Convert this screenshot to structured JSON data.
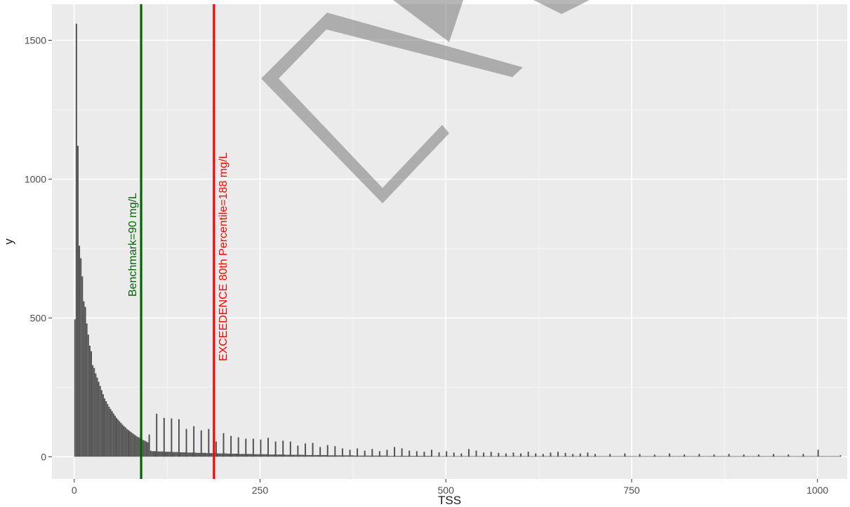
{
  "chart_data": {
    "type": "bar",
    "xlabel": "TSS",
    "ylabel": "y",
    "xlim": [
      -30,
      1040
    ],
    "ylim": [
      -80,
      1630
    ],
    "x_ticks": [
      0,
      250,
      500,
      750,
      1000
    ],
    "y_ticks": [
      0,
      500,
      1000,
      1500
    ],
    "grid": true,
    "colors": {
      "panel": "#ebebeb",
      "grid_major": "#ffffff",
      "bar": "#4d4d4d",
      "benchmark": "#006400",
      "exceedence": "#ff0000"
    },
    "bin_width": 2,
    "dense_bins": [
      [
        0,
        495
      ],
      [
        2,
        1560
      ],
      [
        4,
        1120
      ],
      [
        6,
        760
      ],
      [
        8,
        715
      ],
      [
        10,
        650
      ],
      [
        12,
        560
      ],
      [
        14,
        540
      ],
      [
        16,
        480
      ],
      [
        18,
        440
      ],
      [
        20,
        400
      ],
      [
        22,
        380
      ],
      [
        24,
        330
      ],
      [
        26,
        320
      ],
      [
        28,
        300
      ],
      [
        30,
        285
      ],
      [
        32,
        270
      ],
      [
        34,
        255
      ],
      [
        36,
        240
      ],
      [
        38,
        225
      ],
      [
        40,
        210
      ],
      [
        42,
        200
      ],
      [
        44,
        190
      ],
      [
        46,
        180
      ],
      [
        48,
        172
      ],
      [
        50,
        164
      ],
      [
        52,
        156
      ],
      [
        54,
        148
      ],
      [
        56,
        140
      ],
      [
        58,
        134
      ],
      [
        60,
        128
      ],
      [
        62,
        122
      ],
      [
        64,
        116
      ],
      [
        66,
        110
      ],
      [
        68,
        106
      ],
      [
        70,
        100
      ],
      [
        72,
        96
      ],
      [
        74,
        92
      ],
      [
        76,
        88
      ],
      [
        78,
        84
      ],
      [
        80,
        80
      ],
      [
        82,
        76
      ],
      [
        84,
        72
      ],
      [
        86,
        70
      ],
      [
        88,
        66
      ],
      [
        90,
        64
      ],
      [
        92,
        60
      ],
      [
        94,
        58
      ],
      [
        96,
        55
      ],
      [
        98,
        52
      ],
      [
        100,
        80
      ],
      [
        102,
        22
      ],
      [
        104,
        20
      ]
    ],
    "spike_bins": [
      [
        110,
        155
      ],
      [
        120,
        140
      ],
      [
        130,
        138
      ],
      [
        140,
        135
      ],
      [
        150,
        100
      ],
      [
        160,
        110
      ],
      [
        170,
        95
      ],
      [
        180,
        100
      ],
      [
        190,
        55
      ],
      [
        200,
        85
      ],
      [
        210,
        75
      ],
      [
        220,
        70
      ],
      [
        230,
        65
      ],
      [
        240,
        65
      ],
      [
        250,
        62
      ],
      [
        260,
        68
      ],
      [
        270,
        55
      ],
      [
        280,
        58
      ],
      [
        290,
        55
      ],
      [
        300,
        40
      ],
      [
        310,
        48
      ],
      [
        320,
        50
      ],
      [
        330,
        35
      ],
      [
        340,
        42
      ],
      [
        350,
        38
      ],
      [
        360,
        30
      ],
      [
        370,
        25
      ],
      [
        380,
        30
      ],
      [
        390,
        22
      ],
      [
        400,
        28
      ],
      [
        410,
        20
      ],
      [
        420,
        25
      ],
      [
        430,
        35
      ],
      [
        440,
        30
      ],
      [
        450,
        22
      ],
      [
        460,
        20
      ],
      [
        470,
        18
      ],
      [
        480,
        25
      ],
      [
        490,
        16
      ],
      [
        500,
        20
      ],
      [
        510,
        15
      ],
      [
        520,
        12
      ],
      [
        530,
        28
      ],
      [
        540,
        22
      ],
      [
        550,
        15
      ],
      [
        560,
        18
      ],
      [
        570,
        14
      ],
      [
        580,
        12
      ],
      [
        590,
        15
      ],
      [
        600,
        12
      ],
      [
        610,
        18
      ],
      [
        620,
        12
      ],
      [
        630,
        10
      ],
      [
        640,
        15
      ],
      [
        650,
        18
      ],
      [
        660,
        14
      ],
      [
        670,
        10
      ],
      [
        680,
        12
      ],
      [
        690,
        15
      ],
      [
        700,
        10
      ],
      [
        720,
        10
      ],
      [
        740,
        12
      ],
      [
        760,
        10
      ],
      [
        780,
        8
      ],
      [
        800,
        12
      ],
      [
        820,
        8
      ],
      [
        840,
        10
      ],
      [
        860,
        8
      ],
      [
        880,
        10
      ],
      [
        900,
        8
      ],
      [
        920,
        8
      ],
      [
        940,
        10
      ],
      [
        960,
        8
      ],
      [
        980,
        10
      ],
      [
        1000,
        25
      ],
      [
        1030,
        5
      ]
    ],
    "vlines": [
      {
        "x": 90,
        "color": "#006400",
        "label": "Benchmark=90 mg/L"
      },
      {
        "x": 188,
        "color": "#ff0000",
        "label": "EXCEEDENCE 80th Percentile=188 mg/L"
      }
    ]
  }
}
